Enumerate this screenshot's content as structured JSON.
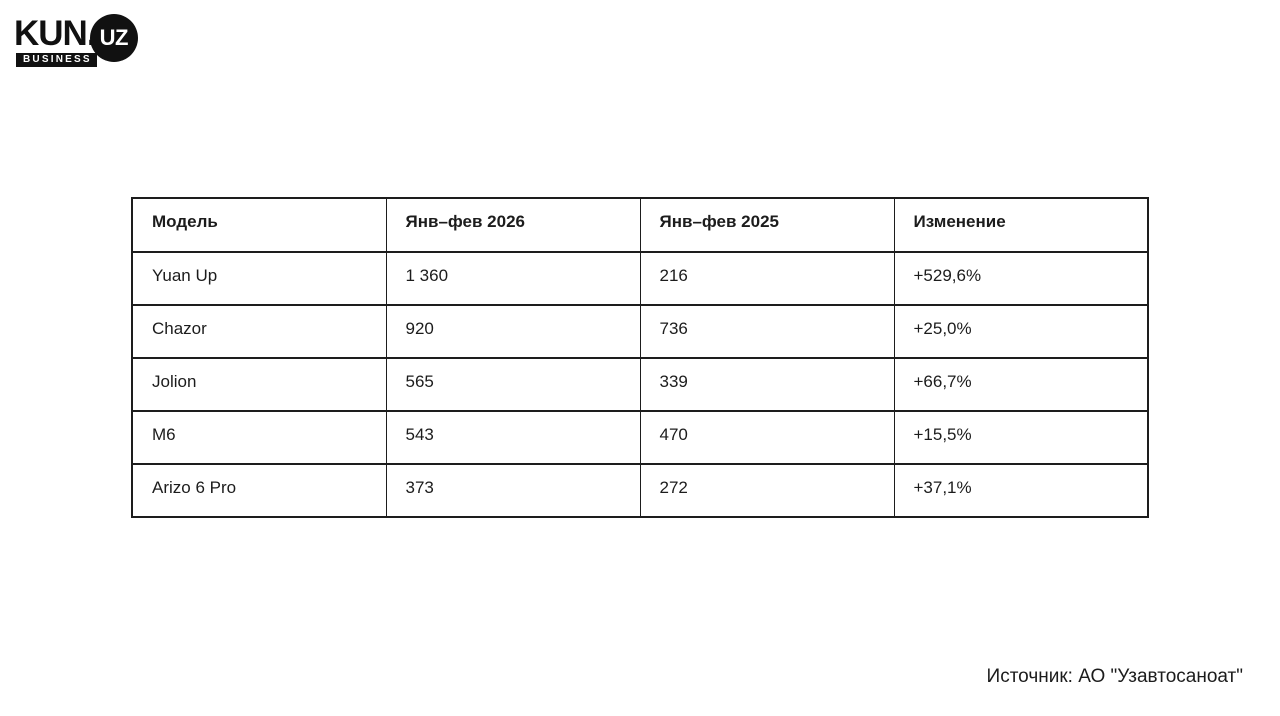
{
  "logo": {
    "kun": "KUN.",
    "uz": "UZ",
    "business": "BUSINESS"
  },
  "table": {
    "columns": {
      "model": "Модель",
      "period_2026": "Янв–фев 2026",
      "period_2025": "Янв–фев 2025",
      "change": "Изменение"
    },
    "rows": [
      {
        "model": "Yuan Up",
        "y2026": "1 360",
        "y2025": "216",
        "change": "+529,6%"
      },
      {
        "model": "Chazor",
        "y2026": "920",
        "y2025": "736",
        "change": "+25,0%"
      },
      {
        "model": "Jolion",
        "y2026": "565",
        "y2025": "339",
        "change": "+66,7%"
      },
      {
        "model": "M6",
        "y2026": "543",
        "y2025": "470",
        "change": "+15,5%"
      },
      {
        "model": "Arizo 6 Pro",
        "y2026": "373",
        "y2025": "272",
        "change": "+37,1%"
      }
    ]
  },
  "source_label": "Источник: АО \"Узавтосаноат\"",
  "colors": {
    "text": "#1c1c1c",
    "border": "#1d1d1d",
    "logo_bg": "#111111",
    "background": "#ffffff"
  },
  "chart_data": {
    "type": "table",
    "title": "",
    "columns": [
      "Модель",
      "Янв–фев 2026",
      "Янв–фев 2025",
      "Изменение"
    ],
    "rows": [
      [
        "Yuan Up",
        "1 360",
        "216",
        "+529,6%"
      ],
      [
        "Chazor",
        "920",
        "736",
        "+25,0%"
      ],
      [
        "Jolion",
        "565",
        "339",
        "+66,7%"
      ],
      [
        "M6",
        "543",
        "470",
        "+15,5%"
      ],
      [
        "Arizo 6 Pro",
        "373",
        "272",
        "+37,1%"
      ]
    ],
    "values_2026": [
      1360,
      920,
      565,
      543,
      373
    ],
    "values_2025": [
      216,
      736,
      339,
      470,
      272
    ],
    "change_percent": [
      529.6,
      25.0,
      66.7,
      15.5,
      37.1
    ],
    "source": "Источник: АО \"Узавтосаноат\""
  }
}
